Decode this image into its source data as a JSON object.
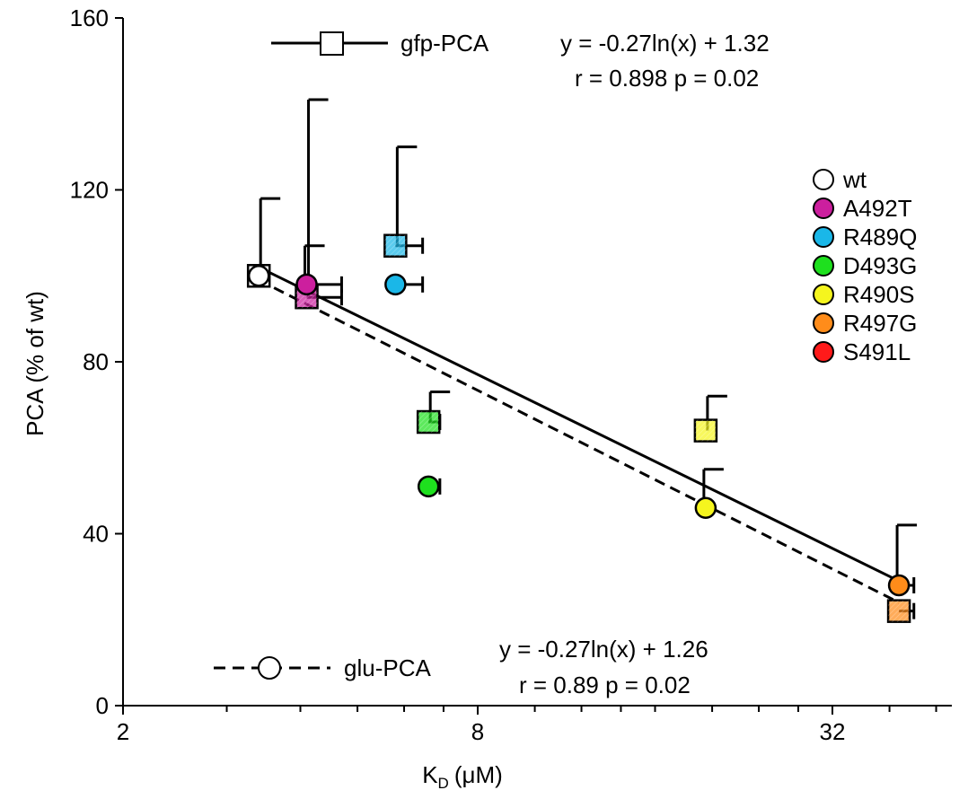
{
  "chart_data": {
    "type": "scatter",
    "title": "",
    "xlabel": "K",
    "xlabel_sub": "D",
    "xlabel_unit": "(μM)",
    "ylabel": "PCA  (% of wt)",
    "x_scale": "log2",
    "xlim": [
      2,
      50
    ],
    "ylim": [
      0,
      160
    ],
    "x_ticks": [
      2,
      8,
      32
    ],
    "x_tick_labels": [
      "2",
      "8",
      "32"
    ],
    "y_ticks": [
      0,
      40,
      80,
      120,
      160
    ],
    "y_tick_labels": [
      "0",
      "40",
      "80",
      "120",
      "160"
    ],
    "grid": false,
    "legend_position": "right",
    "mutants": [
      {
        "name": "wt",
        "color": "#ffffff",
        "kd": 3.4,
        "gfp": 100,
        "gfp_err": 18,
        "glu": 100,
        "glu_err": 0,
        "kd_err": 0.12
      },
      {
        "name": "A492T",
        "color": "#cc1f9e",
        "kd": 4.1,
        "gfp": 95,
        "gfp_err": 46,
        "glu": 98,
        "glu_err": 9,
        "kd_err": 0.6
      },
      {
        "name": "R489Q",
        "color": "#1ab7e8",
        "kd": 5.8,
        "gfp": 107,
        "gfp_err": 23,
        "glu": 98,
        "glu_err": 0,
        "kd_err": 0.65
      },
      {
        "name": "D493G",
        "color": "#1ee01e",
        "kd": 6.6,
        "gfp": 66,
        "gfp_err": 7,
        "glu": 51,
        "glu_err": 0,
        "kd_err": 0.3
      },
      {
        "name": "R490S",
        "color": "#f5f51e",
        "kd": 19.5,
        "gfp": 64,
        "gfp_err": 8,
        "glu": 46,
        "glu_err": 9,
        "kd_err": 0
      },
      {
        "name": "R497G",
        "color": "#ff8c1a",
        "kd": 41.5,
        "gfp": 22,
        "gfp_err": 0,
        "glu": 28,
        "glu_err": 14,
        "kd_err": 2.5
      },
      {
        "name": "S491L",
        "color": "#ff1a1a"
      }
    ],
    "series": [
      {
        "name": "gfp-PCA",
        "marker": "square",
        "line": "solid",
        "fit": {
          "equation": "y = -0.27ln(x) + 1.32",
          "stats": "r = 0.898 p = 0.02",
          "slope": -0.27,
          "intercept": 1.32
        }
      },
      {
        "name": "glu-PCA",
        "marker": "circle",
        "line": "dashed",
        "fit": {
          "equation": "y = -0.27ln(x) + 1.26",
          "stats": "r = 0.89  p = 0.02",
          "slope": -0.27,
          "intercept": 1.26
        }
      }
    ]
  }
}
